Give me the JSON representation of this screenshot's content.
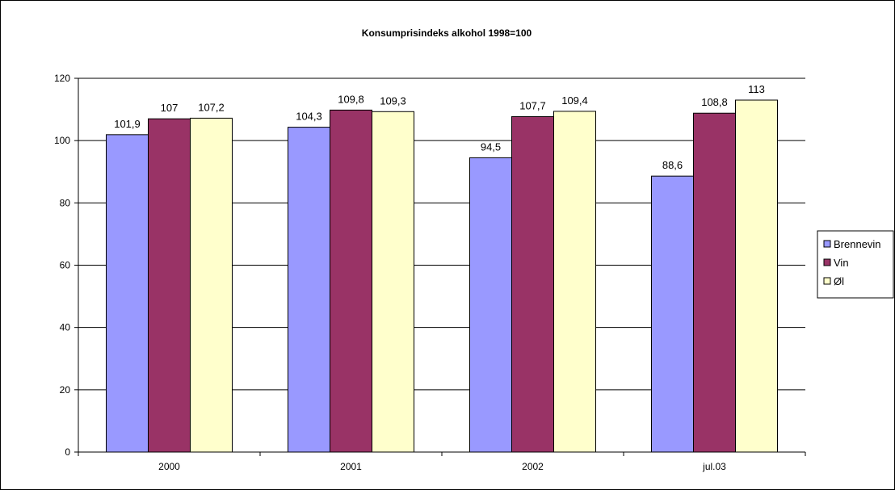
{
  "chart_data": {
    "type": "bar",
    "title": "Konsumprisindeks alkohol 1998=100",
    "xlabel": "",
    "ylabel": "",
    "categories": [
      "2000",
      "2001",
      "2002",
      "jul.03"
    ],
    "series": [
      {
        "name": "Brennevin",
        "values": [
          101.9,
          104.3,
          94.5,
          88.6
        ],
        "labels": [
          "101,9",
          "104,3",
          "94,5",
          "88,6"
        ],
        "color": "#9999FF"
      },
      {
        "name": "Vin",
        "values": [
          107,
          109.8,
          107.7,
          108.8
        ],
        "labels": [
          "107",
          "109,8",
          "107,7",
          "108,8"
        ],
        "color": "#993366"
      },
      {
        "name": "Øl",
        "values": [
          107.2,
          109.3,
          109.4,
          113
        ],
        "labels": [
          "107,2",
          "109,3",
          "109,4",
          "113"
        ],
        "color": "#FFFFCC"
      }
    ],
    "ylim": [
      0,
      120
    ],
    "yticks": [
      0,
      20,
      40,
      60,
      80,
      100,
      120
    ],
    "grid": true,
    "legend_position": "right"
  }
}
